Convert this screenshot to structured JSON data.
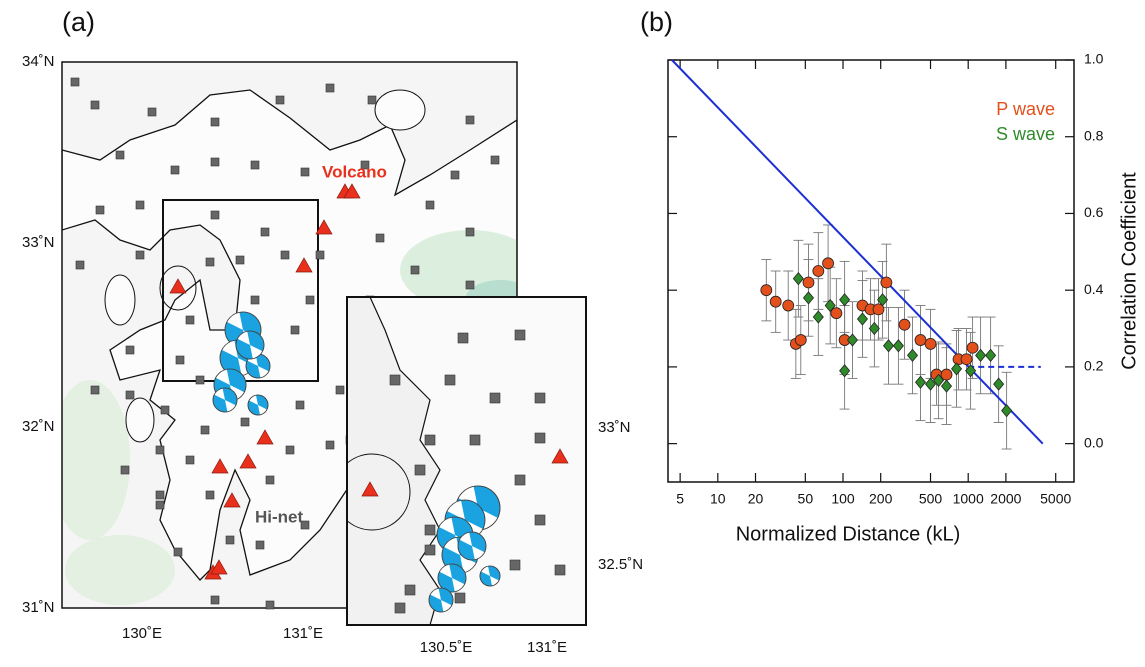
{
  "panel_a": {
    "label": "(a)",
    "lat_labels": [
      "34˚N",
      "33˚N",
      "32˚N",
      "31˚N"
    ],
    "lon_labels": [
      "130˚E",
      "131˚E"
    ],
    "volcano_label": "Volcano",
    "network_label": "Hi-net",
    "inset": {
      "lat_labels": [
        "33˚N",
        "32.5˚N"
      ],
      "lon_labels": [
        "130.5˚E",
        "131˚E"
      ]
    }
  },
  "chart_data": {
    "type": "scatter",
    "panel_label": "(b)",
    "x_label": "Normalized Distance (kL)",
    "y_label": "Correlation Coefficient",
    "log_x": true,
    "y_axis_side": "right",
    "legend": "upper right",
    "xlim": [
      4,
      7000
    ],
    "xticks": [
      5,
      10,
      20,
      50,
      100,
      200,
      500,
      1000,
      2000,
      5000
    ],
    "ylim": [
      -0.1,
      1.0
    ],
    "yticks": [
      {
        "value": 0,
        "label": "0.0"
      },
      0.2,
      0.4,
      0.6,
      {
        "value": 0.8,
        "label": "0.8"
      },
      {
        "value": 1,
        "label": "1.0"
      }
    ],
    "series": [
      {
        "name": "P wave",
        "color": "#e4501c",
        "marker": "circle",
        "x": [
          24.4,
          29,
          36.5,
          42,
          46,
          53,
          63.5,
          76,
          88.5,
          103,
          143,
          166,
          192,
          222,
          310,
          416,
          500,
          558,
          671,
          837,
          970,
          1084
        ],
        "values": [
          0.4,
          0.37,
          0.36,
          0.26,
          0.27,
          0.42,
          0.45,
          0.47,
          0.34,
          0.27,
          0.36,
          0.35,
          0.35,
          0.42,
          0.31,
          0.27,
          0.26,
          0.18,
          0.18,
          0.22,
          0.22,
          0.25
        ],
        "errors": [
          0.08,
          0.08,
          0.09,
          0.09,
          0.09,
          0.1,
          0.1,
          0.1,
          0.09,
          0.09,
          0.09,
          0.08,
          0.08,
          0.1,
          0.09,
          0.09,
          0.09,
          0.08,
          0.08,
          0.08,
          0.08,
          0.08
        ]
      },
      {
        "name": "S wave",
        "color": "#2f8a2a",
        "marker": "diamond",
        "x": [
          44,
          53,
          63.5,
          79,
          103,
          103,
          119,
          143,
          178,
          207,
          231,
          277,
          359,
          416,
          500,
          580,
          671,
          807,
          1045,
          1256,
          1510,
          1750,
          2027
        ],
        "values": [
          0.43,
          0.38,
          0.33,
          0.36,
          0.375,
          0.19,
          0.27,
          0.325,
          0.3,
          0.375,
          0.255,
          0.255,
          0.23,
          0.16,
          0.155,
          0.165,
          0.15,
          0.195,
          0.19,
          0.23,
          0.23,
          0.155,
          0.086
        ],
        "errors": [
          0.1,
          0.1,
          0.1,
          0.1,
          0.1,
          0.1,
          0.1,
          0.1,
          0.1,
          0.1,
          0.1,
          0.1,
          0.1,
          0.1,
          0.1,
          0.1,
          0.1,
          0.1,
          0.1,
          0.1,
          0.1,
          0.1,
          0.1
        ]
      }
    ],
    "fit_line": {
      "color": "#1c2fd4",
      "x": [
        4.3,
        3940
      ],
      "values": [
        1.0,
        0.0
      ]
    },
    "threshold_line": {
      "color": "#1c2fd4",
      "x": [
        1000,
        3800
      ],
      "values": [
        0.2,
        0.2
      ]
    }
  }
}
